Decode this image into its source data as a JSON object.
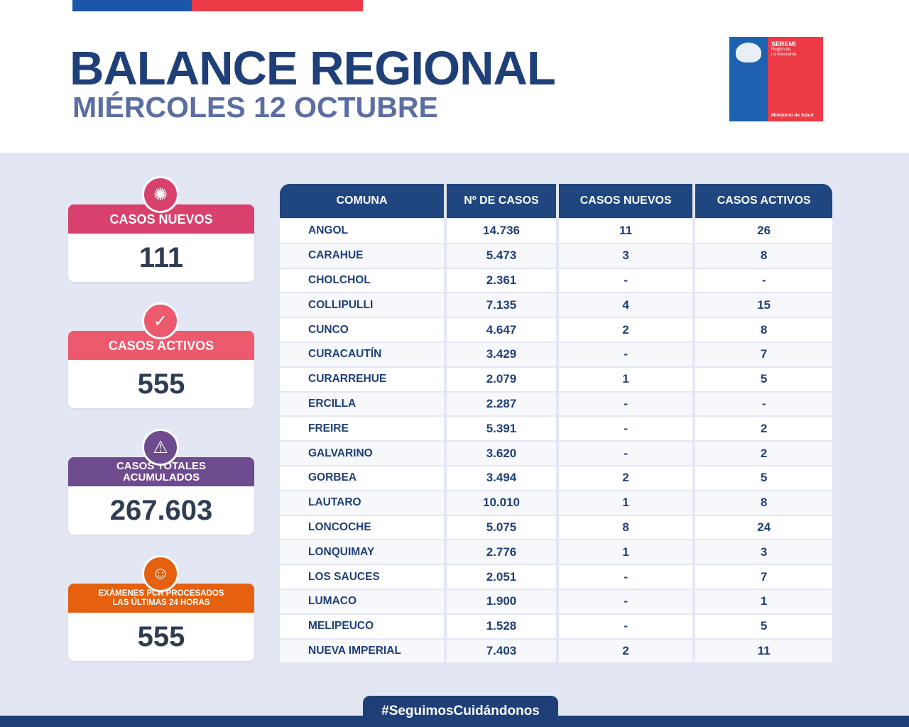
{
  "header": {
    "title": "BALANCE REGIONAL",
    "subtitle": "MIÉRCOLES 12 OCTUBRE"
  },
  "logo": {
    "line1": "SEREMI",
    "line2": "Región de",
    "line3": "La Araucanía",
    "line4": "Ministerio de Salud"
  },
  "colors": {
    "blue": "#1f3f78",
    "red": "#ec3b47",
    "casos_nuevos": "#d8416c",
    "casos_activos": "#ee5a6d",
    "totales": "#6e4a8f",
    "pcr": "#e5610f"
  },
  "cards": [
    {
      "label": "CASOS NUEVOS",
      "value": "111",
      "icon": "virus-icon"
    },
    {
      "label": "CASOS ACTIVOS",
      "value": "555",
      "icon": "check-circle-icon"
    },
    {
      "label": "CASOS TOTALES ACUMULADOS",
      "value": "267.603",
      "icon": "virus-warning-icon"
    },
    {
      "label": "EXÁMENES PCR PROCESADOS LAS ÚLTIMAS 24 HORAS",
      "value": "555",
      "icon": "pcr-swab-icon"
    }
  ],
  "table": {
    "headers": [
      "COMUNA",
      "Nº DE CASOS",
      "CASOS NUEVOS",
      "CASOS ACTIVOS"
    ],
    "rows": [
      [
        "ANGOL",
        "14.736",
        "11",
        "26"
      ],
      [
        "CARAHUE",
        "5.473",
        "3",
        "8"
      ],
      [
        "CHOLCHOL",
        "2.361",
        "-",
        "-"
      ],
      [
        "COLLIPULLI",
        "7.135",
        "4",
        "15"
      ],
      [
        "CUNCO",
        "4.647",
        "2",
        "8"
      ],
      [
        "CURACAUTÍN",
        "3.429",
        "-",
        "7"
      ],
      [
        "CURARREHUE",
        "2.079",
        "1",
        "5"
      ],
      [
        "ERCILLA",
        "2.287",
        "-",
        "-"
      ],
      [
        "FREIRE",
        "5.391",
        "-",
        "2"
      ],
      [
        "GALVARINO",
        "3.620",
        "-",
        "2"
      ],
      [
        "GORBEA",
        "3.494",
        "2",
        "5"
      ],
      [
        "LAUTARO",
        "10.010",
        "1",
        "8"
      ],
      [
        "LONCOCHE",
        "5.075",
        "8",
        "24"
      ],
      [
        "LONQUIMAY",
        "2.776",
        "1",
        "3"
      ],
      [
        "LOS SAUCES",
        "2.051",
        "-",
        "7"
      ],
      [
        "LUMACO",
        "1.900",
        "-",
        "1"
      ],
      [
        "MELIPEUCO",
        "1.528",
        "-",
        "5"
      ],
      [
        "NUEVA IMPERIAL",
        "7.403",
        "2",
        "11"
      ]
    ]
  },
  "footer": {
    "hashtag": "#SeguimosCuidándonos"
  }
}
